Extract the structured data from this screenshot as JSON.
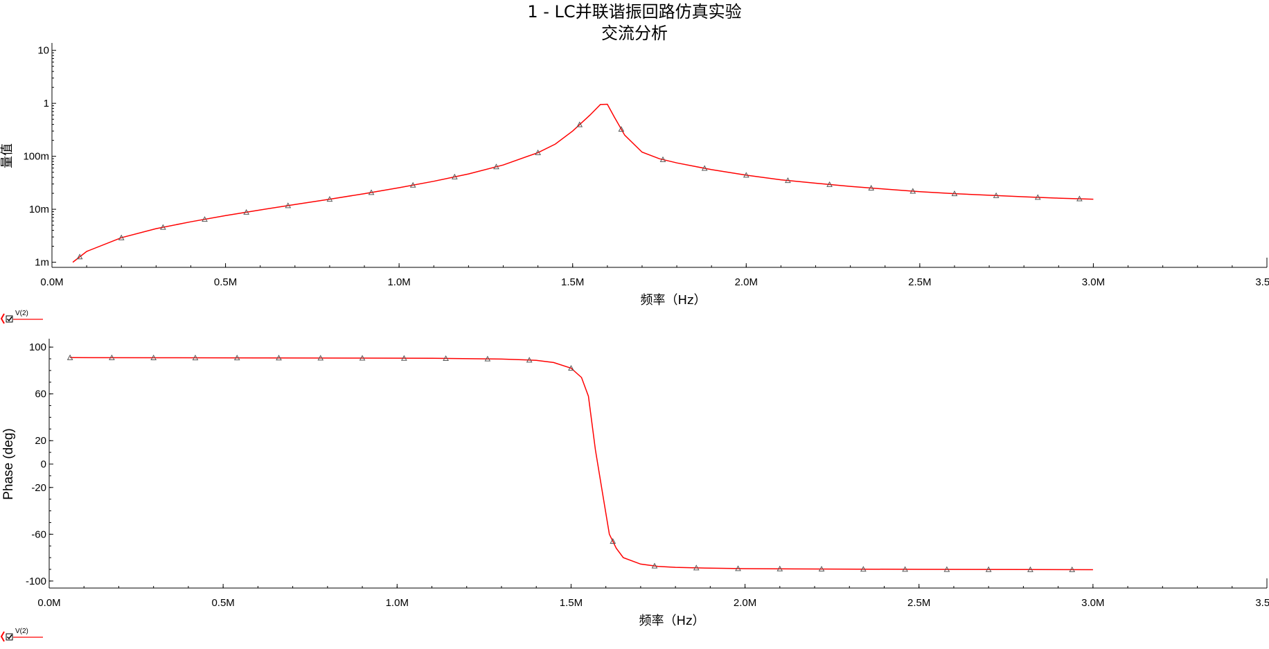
{
  "title": "1 - LC并联谐振回路仿真实验",
  "subtitle": "交流分析",
  "colors": {
    "trace": "#ff0000",
    "axis": "#000000",
    "marker": "#555555",
    "legend_red": "#ff0000"
  },
  "legend": {
    "label": "V(2)",
    "checkbox_icon": "checkbox-checked-icon"
  },
  "chart_data": [
    {
      "type": "line",
      "title": "1 - LC并联谐振回路仿真实验",
      "subtitle": "交流分析",
      "xlabel": "频率（Hz）",
      "ylabel": "量值",
      "yscale": "log",
      "xlim": [
        0,
        3500000
      ],
      "ylim": [
        0.0008,
        13
      ],
      "x_ticks": [
        {
          "value": 0,
          "label": "0.0M"
        },
        {
          "value": 500000,
          "label": "0.5M"
        },
        {
          "value": 1000000,
          "label": "1.0M"
        },
        {
          "value": 1500000,
          "label": "1.5M"
        },
        {
          "value": 2000000,
          "label": "2.0M"
        },
        {
          "value": 2500000,
          "label": "2.5M"
        },
        {
          "value": 3000000,
          "label": "3.0M"
        },
        {
          "value": 3500000,
          "label": "3.5M"
        }
      ],
      "y_ticks": [
        {
          "value": 10,
          "label": "10"
        },
        {
          "value": 1,
          "label": "1"
        },
        {
          "value": 0.1,
          "label": "100m"
        },
        {
          "value": 0.01,
          "label": "10m"
        },
        {
          "value": 0.001,
          "label": "1m"
        }
      ],
      "grid": false,
      "legend_placement": "bottom-left",
      "series": [
        {
          "name": "V(2)",
          "x": [
            60000,
            100000,
            200000,
            300000,
            400000,
            500000,
            600000,
            700000,
            800000,
            900000,
            1000000,
            1100000,
            1200000,
            1300000,
            1400000,
            1450000,
            1500000,
            1550000,
            1580000,
            1600000,
            1620000,
            1650000,
            1700000,
            1750000,
            1800000,
            1900000,
            2000000,
            2100000,
            2200000,
            2300000,
            2400000,
            2500000,
            2600000,
            2700000,
            2800000,
            2900000,
            3000000
          ],
          "y": [
            0.001,
            0.0016,
            0.0029,
            0.0043,
            0.0058,
            0.0076,
            0.0097,
            0.0123,
            0.0155,
            0.0197,
            0.0255,
            0.0338,
            0.0465,
            0.0685,
            0.117,
            0.17,
            0.3,
            0.6,
            0.95,
            0.96,
            0.55,
            0.25,
            0.12,
            0.09,
            0.075,
            0.056,
            0.044,
            0.036,
            0.031,
            0.027,
            0.024,
            0.0215,
            0.0197,
            0.0184,
            0.0172,
            0.0162,
            0.0155
          ]
        }
      ],
      "markers_x": [
        80000,
        200000,
        320000,
        440000,
        560000,
        680000,
        800000,
        920000,
        1040000,
        1160000,
        1280000,
        1400000,
        1520000,
        1640000,
        1760000,
        1880000,
        2000000,
        2120000,
        2240000,
        2360000,
        2480000,
        2600000,
        2720000,
        2840000,
        2960000
      ]
    },
    {
      "type": "line",
      "xlabel": "频率（Hz）",
      "ylabel": "Phase (deg)",
      "yscale": "linear",
      "xlim": [
        0,
        3500000
      ],
      "ylim": [
        -106,
        106
      ],
      "x_ticks": [
        {
          "value": 0,
          "label": "0.0M"
        },
        {
          "value": 500000,
          "label": "0.5M"
        },
        {
          "value": 1000000,
          "label": "1.0M"
        },
        {
          "value": 1500000,
          "label": "1.5M"
        },
        {
          "value": 2000000,
          "label": "2.0M"
        },
        {
          "value": 2500000,
          "label": "2.5M"
        },
        {
          "value": 3000000,
          "label": "3.0M"
        },
        {
          "value": 3500000,
          "label": "3.5M"
        }
      ],
      "y_ticks": [
        {
          "value": 100,
          "label": "100"
        },
        {
          "value": 60,
          "label": "60"
        },
        {
          "value": 20,
          "label": "20"
        },
        {
          "value": 0,
          "label": "0"
        },
        {
          "value": -20,
          "label": "-20"
        },
        {
          "value": -60,
          "label": "-60"
        },
        {
          "value": -100,
          "label": "-100"
        }
      ],
      "grid": false,
      "legend_placement": "bottom-left",
      "series": [
        {
          "name": "V(2)",
          "x": [
            60000,
            300000,
            600000,
            900000,
            1100000,
            1300000,
            1400000,
            1450000,
            1500000,
            1530000,
            1550000,
            1570000,
            1590000,
            1610000,
            1630000,
            1650000,
            1700000,
            1750000,
            1800000,
            1900000,
            2000000,
            2200000,
            2500000,
            2800000,
            3000000
          ],
          "y": [
            91,
            90.9,
            90.8,
            90.6,
            90.4,
            89.8,
            88.7,
            86.8,
            82,
            74,
            58,
            12,
            -24,
            -60,
            -72,
            -80,
            -85.5,
            -87.5,
            -88.3,
            -89,
            -89.4,
            -89.7,
            -90,
            -90.2,
            -90.3
          ]
        }
      ],
      "markers_x": [
        60000,
        180000,
        300000,
        420000,
        540000,
        660000,
        780000,
        900000,
        1020000,
        1140000,
        1260000,
        1380000,
        1500000,
        1620000,
        1740000,
        1860000,
        1980000,
        2100000,
        2220000,
        2340000,
        2460000,
        2580000,
        2700000,
        2820000,
        2940000
      ]
    }
  ]
}
